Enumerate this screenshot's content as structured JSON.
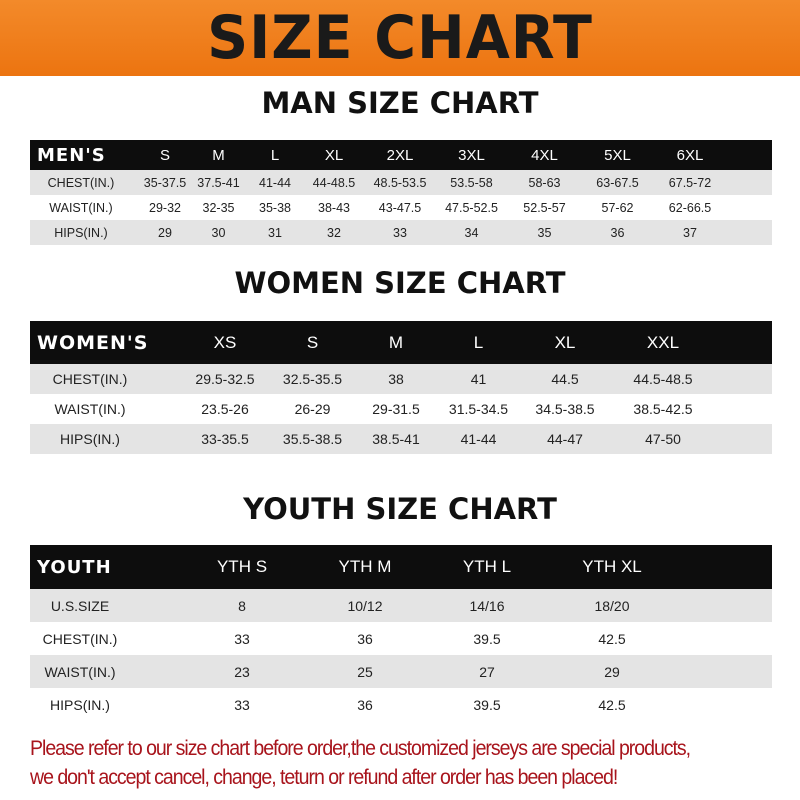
{
  "banner_title": "SIZE CHART",
  "accent_color": "#ef7d1c",
  "notice_color": "#a8141c",
  "tables": [
    {
      "id": "men",
      "title": "MAN SIZE CHART",
      "header": [
        "MEN'S",
        "S",
        "M",
        "L",
        "XL",
        "2XL",
        "3XL",
        "4XL",
        "5XL",
        "6XL"
      ],
      "rows": [
        [
          "CHEST(IN.)",
          "35-37.5",
          "37.5-41",
          "41-44",
          "44-48.5",
          "48.5-53.5",
          "53.5-58",
          "58-63",
          "63-67.5",
          "67.5-72"
        ],
        [
          "WAIST(IN.)",
          "29-32",
          "32-35",
          "35-38",
          "38-43",
          "43-47.5",
          "47.5-52.5",
          "52.5-57",
          "57-62",
          "62-66.5"
        ],
        [
          "HIPS(IN.)",
          "29",
          "30",
          "31",
          "32",
          "33",
          "34",
          "35",
          "36",
          "37"
        ]
      ]
    },
    {
      "id": "women",
      "title": "WOMEN SIZE CHART",
      "header": [
        "WOMEN'S",
        "XS",
        "S",
        "M",
        "L",
        "XL",
        "XXL"
      ],
      "rows": [
        [
          "CHEST(IN.)",
          "29.5-32.5",
          "32.5-35.5",
          "38",
          "41",
          "44.5",
          "44.5-48.5"
        ],
        [
          "WAIST(IN.)",
          "23.5-26",
          "26-29",
          "29-31.5",
          "31.5-34.5",
          "34.5-38.5",
          "38.5-42.5"
        ],
        [
          "HIPS(IN.)",
          "33-35.5",
          "35.5-38.5",
          "38.5-41",
          "41-44",
          "44-47",
          "47-50"
        ]
      ]
    },
    {
      "id": "youth",
      "title": "YOUTH SIZE CHART",
      "header": [
        "YOUTH",
        "YTH S",
        "YTH M",
        "YTH L",
        "YTH XL"
      ],
      "rows": [
        [
          "U.S.SIZE",
          "8",
          "10/12",
          "14/16",
          "18/20"
        ],
        [
          "CHEST(IN.)",
          "33",
          "36",
          "39.5",
          "42.5"
        ],
        [
          "WAIST(IN.)",
          "23",
          "25",
          "27",
          "29"
        ],
        [
          "HIPS(IN.)",
          "33",
          "36",
          "39.5",
          "42.5"
        ]
      ]
    }
  ],
  "notice": [
    "Please refer to our size chart before order,the customized jerseys are special products,",
    "we don't accept cancel, change, teturn or refund after order has been placed!"
  ]
}
